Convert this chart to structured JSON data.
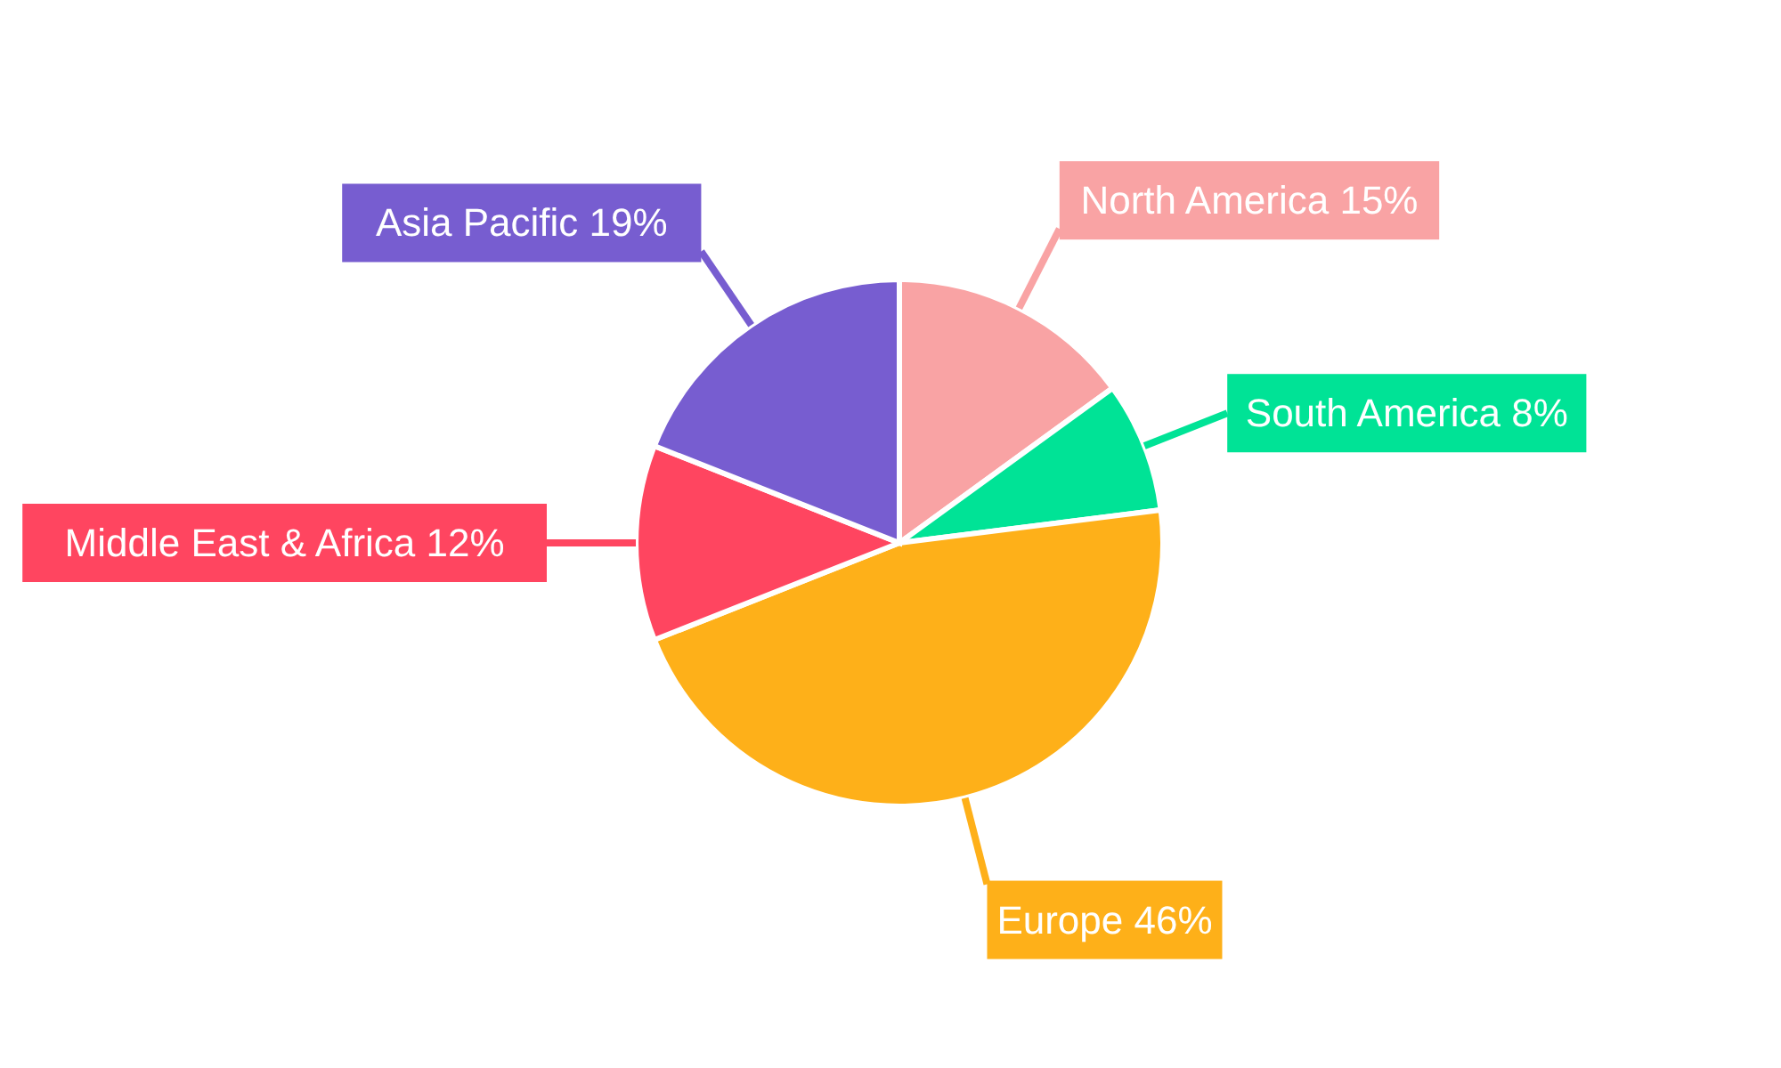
{
  "chart_data": {
    "type": "pie",
    "categories": [
      "North America",
      "South America",
      "Europe",
      "Middle East & Africa",
      "Asia Pacific"
    ],
    "values": [
      15,
      8,
      46,
      12,
      19
    ],
    "value_labels": [
      "15%",
      "8%",
      "46%",
      "12%",
      "19%"
    ],
    "colors": [
      "#f9a3a4",
      "#00e396",
      "#feb019",
      "#ff4560",
      "#775dd0"
    ],
    "legend": false
  }
}
